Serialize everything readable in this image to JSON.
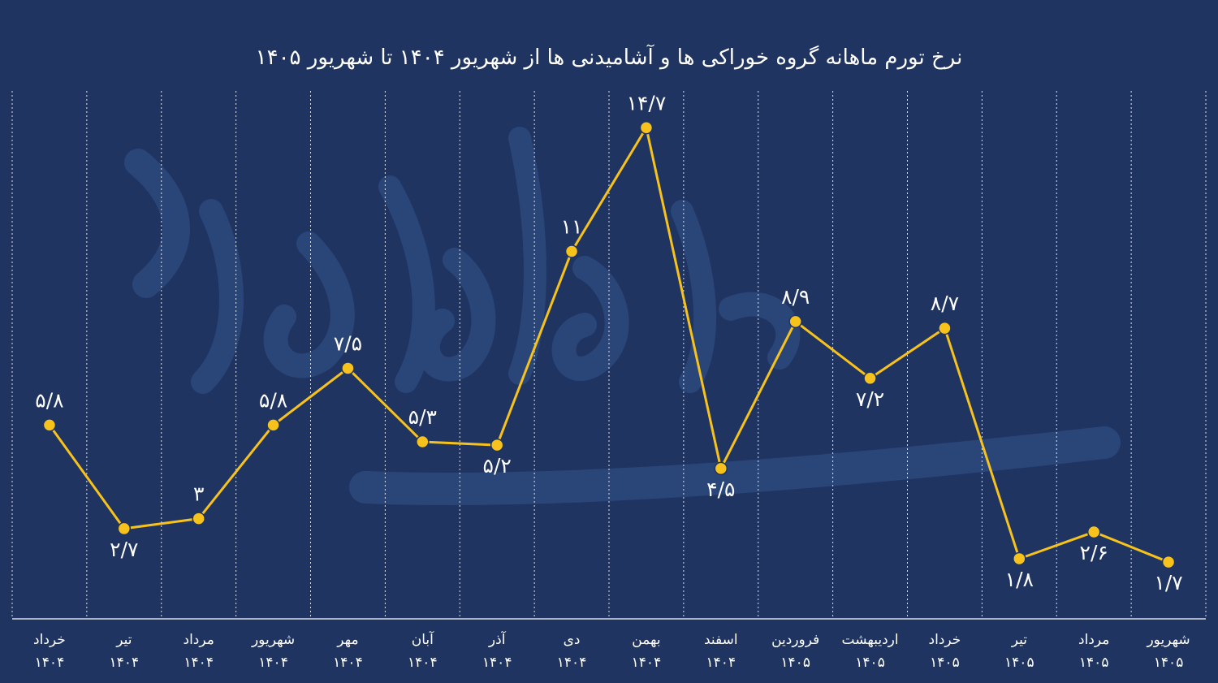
{
  "chart_data": {
    "type": "line",
    "title": "نرخ تورم ماهانه گروه خوراکی ها و آشامیدنی ها از شهریور ۱۴۰۴ تا شهریور ۱۴۰۵",
    "categories": [
      {
        "month": "خرداد",
        "year": "۱۴۰۴"
      },
      {
        "month": "تیر",
        "year": "۱۴۰۴"
      },
      {
        "month": "مرداد",
        "year": "۱۴۰۴"
      },
      {
        "month": "شهریور",
        "year": "۱۴۰۴"
      },
      {
        "month": "مهر",
        "year": "۱۴۰۴"
      },
      {
        "month": "آبان",
        "year": "۱۴۰۴"
      },
      {
        "month": "آذر",
        "year": "۱۴۰۴"
      },
      {
        "month": "دی",
        "year": "۱۴۰۴"
      },
      {
        "month": "بهمن",
        "year": "۱۴۰۴"
      },
      {
        "month": "اسفند",
        "year": "۱۴۰۴"
      },
      {
        "month": "فروردین",
        "year": "۱۴۰۵"
      },
      {
        "month": "اردیبهشت",
        "year": "۱۴۰۵"
      },
      {
        "month": "خرداد",
        "year": "۱۴۰۵"
      },
      {
        "month": "تیر",
        "year": "۱۴۰۵"
      },
      {
        "month": "مرداد",
        "year": "۱۴۰۵"
      },
      {
        "month": "شهریور",
        "year": "۱۴۰۵"
      }
    ],
    "series": [
      {
        "values": [
          5.8,
          2.7,
          3,
          5.8,
          7.5,
          5.3,
          5.2,
          11,
          14.7,
          4.5,
          8.9,
          7.2,
          8.7,
          1.8,
          2.6,
          1.7
        ],
        "labels": [
          "۵/۸",
          "۲/۷",
          "۳",
          "۵/۸",
          "۷/۵",
          "۵/۳",
          "۵/۲",
          "۱۱",
          "۱۴/۷",
          "۴/۵",
          "۸/۹",
          "۷/۲",
          "۸/۷",
          "۱/۸",
          "۲/۶",
          "۱/۷"
        ],
        "label_side": [
          "above",
          "below",
          "above",
          "above",
          "above",
          "above",
          "below",
          "above",
          "above",
          "below",
          "above",
          "below",
          "above",
          "below",
          "below",
          "below"
        ]
      }
    ],
    "ylim": [
      0,
      15.8
    ],
    "grid": "vertical-dashed",
    "legend": "none",
    "colors": {
      "background": "#1f3461",
      "line": "#f7c21b",
      "text": "#ffffff",
      "watermark": "#2a4679"
    }
  }
}
